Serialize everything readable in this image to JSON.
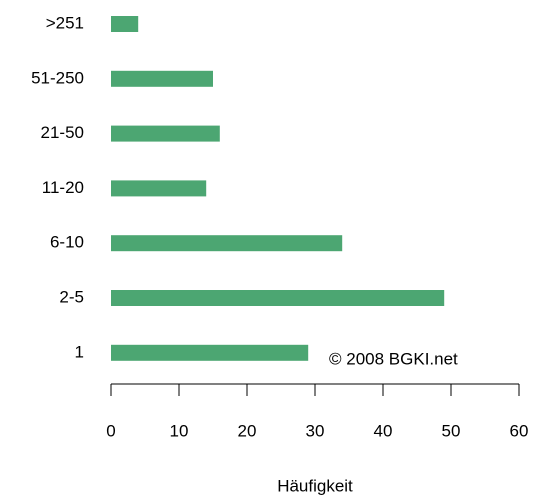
{
  "chart_data": {
    "type": "bar",
    "orientation": "horizontal",
    "categories": [
      "1",
      "2-5",
      "6-10",
      "11-20",
      "21-50",
      "51-250",
      ">251"
    ],
    "values": [
      29,
      49,
      34,
      14,
      16,
      15,
      4
    ],
    "color": "#4ca672",
    "xlabel": "Häufigkeit",
    "annotation": "© 2008 BGKI.net",
    "xlim": [
      0,
      60
    ],
    "xticks": [
      0,
      10,
      20,
      30,
      40,
      50,
      60
    ]
  }
}
